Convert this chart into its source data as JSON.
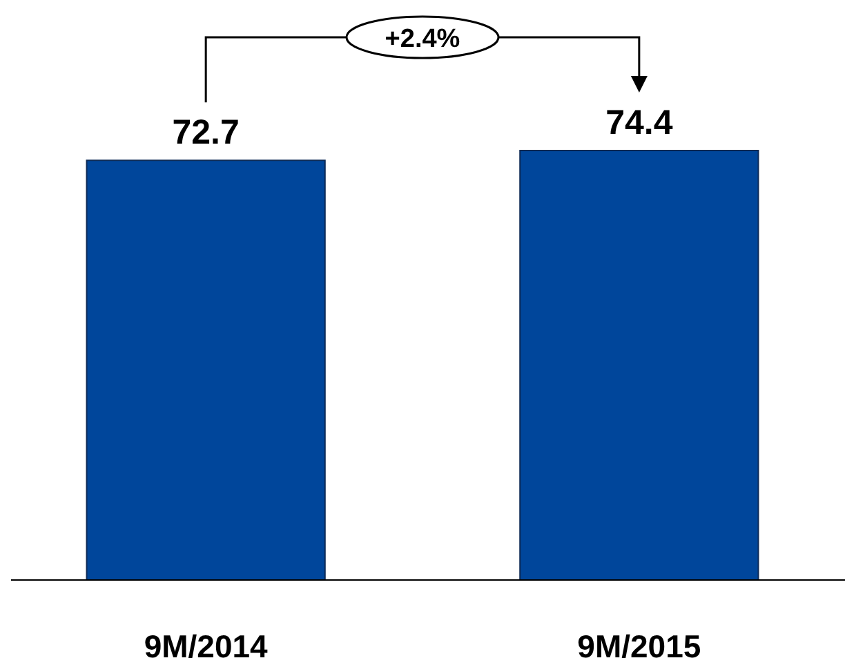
{
  "chart_data": {
    "type": "bar",
    "categories": [
      "9M/2014",
      "9M/2015"
    ],
    "values": [
      72.7,
      74.4
    ],
    "color": "#00469b",
    "data_labels": true,
    "annotations": [
      "+2.4%"
    ]
  }
}
